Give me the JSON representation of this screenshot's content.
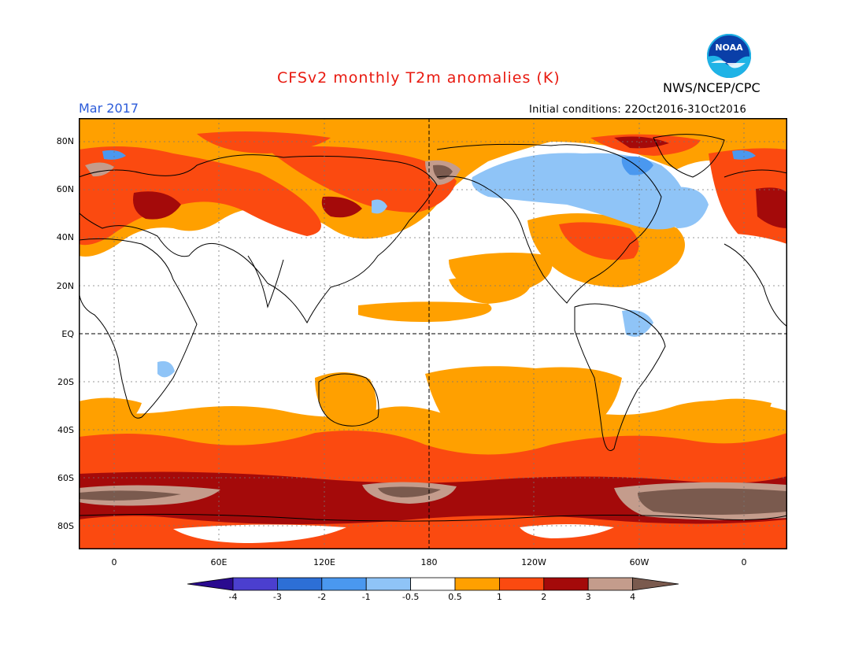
{
  "title": "CFSv2 monthly T2m anomalies (K)",
  "agency": "NWS/NCEP/CPC",
  "logo_text": "NOAA",
  "month_label": "Mar 2017",
  "initial_conditions": "Initial conditions: 22Oct2016-31Oct2016",
  "lat_labels": [
    "80N",
    "60N",
    "40N",
    "20N",
    "EQ",
    "20S",
    "40S",
    "60S",
    "80S"
  ],
  "lon_labels": [
    "0",
    "60E",
    "120E",
    "180",
    "120W",
    "60W",
    "0"
  ],
  "colorbar": {
    "labels": [
      "-4",
      "-3",
      "-2",
      "-1",
      "-0.5",
      "0.5",
      "1",
      "2",
      "3",
      "4"
    ],
    "colors": [
      "#2a0a8f",
      "#4b3fcf",
      "#2d6fd6",
      "#4a98ef",
      "#8fc4f7",
      "#ffffff",
      "#ffa000",
      "#fb4a10",
      "#a40a0a",
      "#c49c8c",
      "#7a5a4e"
    ]
  },
  "palette": {
    "orange": "#ffa000",
    "red": "#fb4a10",
    "darkred": "#a40a0a",
    "tan": "#c49c8c",
    "brown": "#7a5a4e",
    "lightblue": "#8fc4f7",
    "blue": "#4a98ef",
    "title_red": "#e8190f",
    "month_blue": "#2b5bd9"
  }
}
